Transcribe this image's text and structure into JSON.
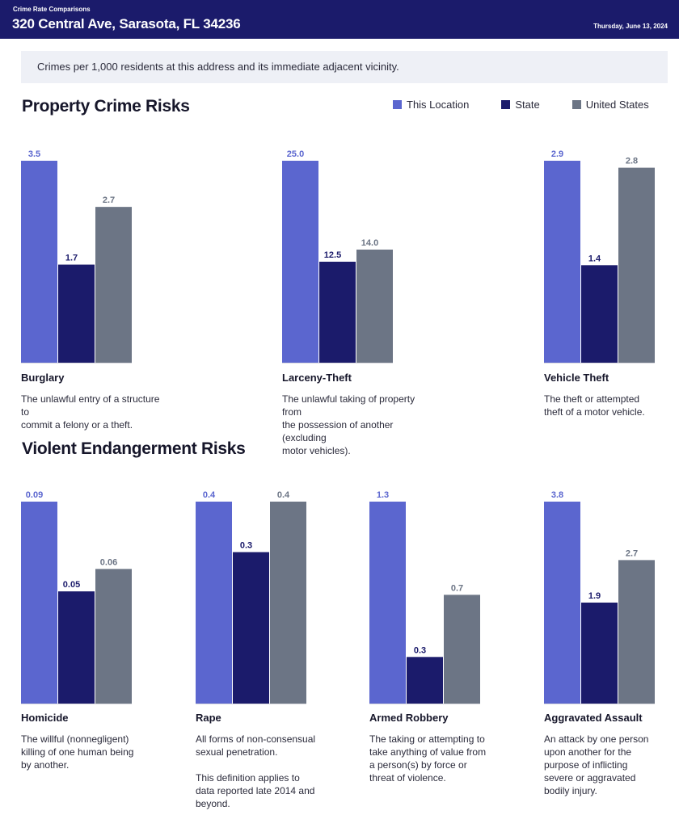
{
  "header": {
    "kicker": "Crime Rate Comparisons",
    "address": "320 Central Ave, Sarasota, FL 34236",
    "date": "Thursday, June 13, 2024"
  },
  "note": "Crimes per 1,000 residents at this address and its immediate adjacent vicinity.",
  "legend": [
    {
      "label": "This Location",
      "color": "#5b66cf"
    },
    {
      "label": "State",
      "color": "#1b1b6b"
    },
    {
      "label": "United States",
      "color": "#6c7585"
    }
  ],
  "colors": {
    "this_location": "#5b66cf",
    "state": "#1b1b6b",
    "united_states": "#6c7585",
    "baseline": "#d8d8de"
  },
  "sections": {
    "property_title": "Property Crime Risks",
    "violent_title": "Violent Endangerment Risks"
  },
  "chart_data": [
    {
      "type": "bar",
      "title": "Property Crime Risks",
      "series_names": [
        "This Location",
        "State",
        "United States"
      ],
      "groups": [
        {
          "category": "Burglary",
          "labels": [
            "3.5",
            "1.7",
            "2.7"
          ],
          "values": [
            3.5,
            1.7,
            2.7
          ],
          "description": "The unlawful entry of a structure to\ncommit a felony or a theft."
        },
        {
          "category": "Larceny-Theft",
          "labels": [
            "25.0",
            "12.5",
            "14.0"
          ],
          "values": [
            25.0,
            12.5,
            14.0
          ],
          "description": "The unlawful taking of property from\nthe possession of another (excluding\nmotor vehicles)."
        },
        {
          "category": "Vehicle Theft",
          "labels": [
            "2.9",
            "1.4",
            "2.8"
          ],
          "values": [
            2.9,
            1.4,
            2.8
          ],
          "description": "The theft or attempted\ntheft of a motor vehicle."
        }
      ]
    },
    {
      "type": "bar",
      "title": "Violent Endangerment Risks",
      "series_names": [
        "This Location",
        "State",
        "United States"
      ],
      "groups": [
        {
          "category": "Homicide",
          "labels": [
            "0.09",
            "0.05",
            "0.06"
          ],
          "values": [
            0.09,
            0.05,
            0.06
          ],
          "description": "The willful (nonnegligent)\nkilling of one human being\nby another."
        },
        {
          "category": "Rape",
          "labels": [
            "0.4",
            "0.3",
            "0.4"
          ],
          "values": [
            0.4,
            0.3,
            0.4
          ],
          "description": "All forms of non-consensual\nsexual penetration.\n\nThis definition applies to\ndata reported late 2014 and\nbeyond."
        },
        {
          "category": "Armed Robbery",
          "labels": [
            "1.3",
            "0.3",
            "0.7"
          ],
          "values": [
            1.3,
            0.3,
            0.7
          ],
          "description": "The taking or attempting to\ntake anything of value from\na person(s) by force or\nthreat of violence."
        },
        {
          "category": "Aggravated Assault",
          "labels": [
            "3.8",
            "1.9",
            "2.7"
          ],
          "values": [
            3.8,
            1.9,
            2.7
          ],
          "description": "An attack by one person\nupon another for the\npurpose of inflicting\nsevere or aggravated\nbodily injury."
        }
      ]
    }
  ]
}
